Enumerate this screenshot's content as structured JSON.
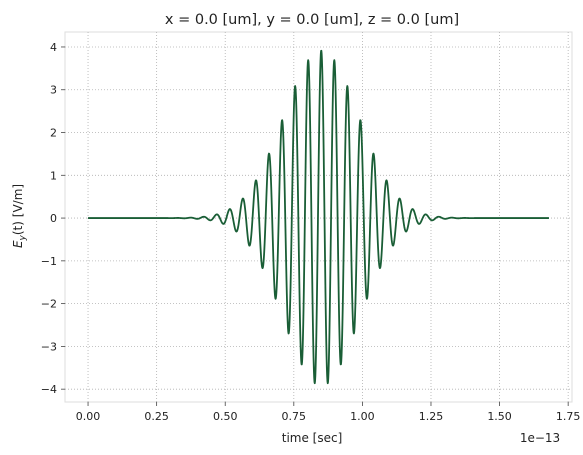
{
  "chart_data": {
    "type": "line",
    "title": "x = 0.0 [um], y = 0.0 [um], z = 0.0 [um]",
    "xlabel": "time [sec]",
    "ylabel_main": "E",
    "ylabel_sub": "y",
    "ylabel_rest": "(t) [V/m]",
    "x_offset_label": "1e−13",
    "xlim": [
      -0.084,
      1.764
    ],
    "ylim": [
      -4.3,
      4.35
    ],
    "x_ticks": [
      0.0,
      0.25,
      0.5,
      0.75,
      1.0,
      1.25,
      1.5,
      1.75
    ],
    "x_tick_labels": [
      "0.00",
      "0.25",
      "0.50",
      "0.75",
      "1.00",
      "1.25",
      "1.50",
      "1.75"
    ],
    "y_ticks": [
      -4,
      -3,
      -2,
      -1,
      0,
      1,
      2,
      3,
      4
    ],
    "y_tick_labels": [
      "−4",
      "−3",
      "−2",
      "−1",
      "0",
      "1",
      "2",
      "3",
      "4"
    ],
    "grid": true,
    "line_color": "#1a5e36",
    "series": [
      {
        "x_range": [
          0.0,
          1.68
        ],
        "waveform": "gaussian-modulated sinusoid",
        "amplitude": 3.92,
        "center": 0.85,
        "width": 0.195,
        "period": 0.0477
      }
    ]
  }
}
